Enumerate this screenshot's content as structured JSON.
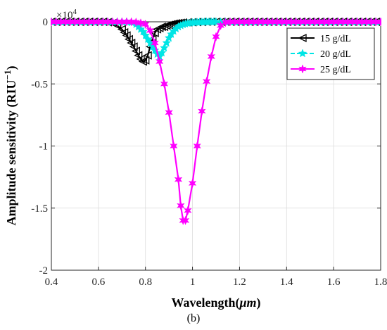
{
  "chart_data": {
    "type": "line",
    "title": "",
    "xlabel": "Wavelength(",
    "xlabel_unit": "μm",
    "xlabel_close": ")",
    "ylabel": "Amplitude sensitivity (RIU",
    "ylabel_sup": "−1",
    "ylabel_close": ")",
    "xlim": [
      0.4,
      1.8
    ],
    "ylim": [
      -2,
      0
    ],
    "y_multiplier": "×10",
    "y_multiplier_exp": "4",
    "grid": true,
    "legend_position": "top-right",
    "xticks": [
      0.4,
      0.6,
      0.8,
      1.0,
      1.2,
      1.4,
      1.6,
      1.8
    ],
    "xtick_labels": [
      "0.4",
      "0.6",
      "0.8",
      "1",
      "1.2",
      "1.4",
      "1.6",
      "1.8"
    ],
    "yticks": [
      0,
      -0.5,
      -1,
      -1.5,
      -2
    ],
    "ytick_labels": [
      "0",
      "-0.5",
      "-1",
      "-1.5",
      "-2"
    ],
    "series": [
      {
        "name": "15 g/dL",
        "color": "#000000",
        "marker": "triangle-left",
        "dash": "solid",
        "x": [
          0.4,
          0.42,
          0.44,
          0.46,
          0.48,
          0.5,
          0.52,
          0.54,
          0.56,
          0.58,
          0.6,
          0.62,
          0.64,
          0.66,
          0.68,
          0.7,
          0.71,
          0.72,
          0.73,
          0.74,
          0.75,
          0.76,
          0.77,
          0.78,
          0.79,
          0.8,
          0.81,
          0.82,
          0.83,
          0.84,
          0.85,
          0.86,
          0.87,
          0.88,
          0.89,
          0.9,
          0.91,
          0.92,
          0.93,
          0.94,
          0.95,
          0.96,
          0.98,
          1.0,
          1.02,
          1.04,
          1.06,
          1.08,
          1.1,
          1.12,
          1.14,
          1.16,
          1.18,
          1.2,
          1.22,
          1.24,
          1.26,
          1.28,
          1.3,
          1.32,
          1.34,
          1.36,
          1.38,
          1.4,
          1.42,
          1.44,
          1.46,
          1.48,
          1.5,
          1.52,
          1.54,
          1.56,
          1.58,
          1.6,
          1.62,
          1.64,
          1.66,
          1.68,
          1.7,
          1.72,
          1.74,
          1.76,
          1.78,
          1.8
        ],
        "y": [
          0,
          0,
          0,
          0,
          0,
          0,
          0,
          0,
          0,
          0,
          0,
          0,
          -0.003,
          -0.01,
          -0.03,
          -0.06,
          -0.085,
          -0.11,
          -0.14,
          -0.17,
          -0.2,
          -0.235,
          -0.27,
          -0.3,
          -0.32,
          -0.31,
          -0.27,
          -0.2,
          -0.14,
          -0.09,
          -0.06,
          -0.05,
          -0.04,
          -0.04,
          -0.03,
          -0.025,
          -0.02,
          -0.015,
          -0.012,
          -0.01,
          -0.008,
          -0.006,
          -0.004,
          -0.003,
          -0.002,
          -0.001,
          0,
          0,
          0,
          0,
          0,
          0,
          0,
          0,
          0,
          0,
          0,
          0,
          0,
          0,
          0,
          0,
          0,
          0,
          0,
          0,
          0,
          0,
          0,
          0,
          0,
          0,
          0,
          0,
          0,
          0,
          0,
          0,
          0,
          0,
          0,
          0,
          0,
          0
        ]
      },
      {
        "name": "20 g/dL",
        "color": "#00e5e5",
        "marker": "star",
        "dash": "dashed",
        "x": [
          0.4,
          0.42,
          0.44,
          0.46,
          0.48,
          0.5,
          0.52,
          0.54,
          0.56,
          0.58,
          0.6,
          0.62,
          0.64,
          0.66,
          0.68,
          0.7,
          0.72,
          0.74,
          0.76,
          0.77,
          0.78,
          0.79,
          0.8,
          0.81,
          0.82,
          0.83,
          0.84,
          0.85,
          0.86,
          0.87,
          0.88,
          0.89,
          0.9,
          0.91,
          0.92,
          0.93,
          0.94,
          0.95,
          0.96,
          0.97,
          0.98,
          0.99,
          1.0,
          1.01,
          1.02,
          1.03,
          1.04,
          1.05,
          1.06,
          1.07,
          1.08,
          1.09,
          1.1,
          1.12,
          1.14,
          1.16,
          1.18,
          1.2,
          1.22,
          1.24,
          1.26,
          1.28,
          1.3,
          1.32,
          1.34,
          1.36,
          1.38,
          1.4,
          1.42,
          1.44,
          1.46,
          1.48,
          1.5,
          1.52,
          1.54,
          1.56,
          1.58,
          1.6,
          1.62,
          1.64,
          1.66,
          1.68,
          1.7,
          1.72,
          1.74,
          1.76,
          1.78,
          1.8
        ],
        "y": [
          0,
          0,
          0,
          0,
          0,
          0,
          0,
          0,
          0,
          0,
          0,
          0,
          0,
          0,
          0,
          0,
          0,
          -0.005,
          -0.02,
          -0.04,
          -0.06,
          -0.08,
          -0.11,
          -0.14,
          -0.17,
          -0.2,
          -0.23,
          -0.26,
          -0.28,
          -0.25,
          -0.21,
          -0.17,
          -0.13,
          -0.1,
          -0.075,
          -0.055,
          -0.04,
          -0.03,
          -0.022,
          -0.016,
          -0.012,
          -0.009,
          -0.007,
          -0.005,
          -0.004,
          -0.003,
          -0.002,
          -0.0015,
          -0.001,
          -0.0008,
          -0.0005,
          -0.0003,
          0,
          0,
          0,
          0,
          0,
          0,
          0,
          0,
          0,
          0,
          0,
          0,
          0,
          0,
          0,
          0,
          0,
          0,
          0,
          0,
          0,
          0,
          0,
          0,
          0,
          0,
          0,
          0,
          0,
          0,
          0,
          0,
          0,
          0,
          0,
          0
        ]
      },
      {
        "name": "25 g/dL",
        "color": "#ff00ff",
        "marker": "star6",
        "dash": "solid",
        "x": [
          0.4,
          0.42,
          0.44,
          0.46,
          0.48,
          0.5,
          0.52,
          0.54,
          0.56,
          0.58,
          0.6,
          0.62,
          0.64,
          0.66,
          0.68,
          0.7,
          0.72,
          0.74,
          0.76,
          0.78,
          0.8,
          0.82,
          0.84,
          0.86,
          0.88,
          0.9,
          0.92,
          0.94,
          0.95,
          0.96,
          0.97,
          0.98,
          1.0,
          1.02,
          1.04,
          1.06,
          1.08,
          1.1,
          1.12,
          1.14,
          1.16,
          1.18,
          1.2,
          1.22,
          1.24,
          1.26,
          1.28,
          1.3,
          1.32,
          1.34,
          1.36,
          1.38,
          1.4,
          1.42,
          1.44,
          1.46,
          1.48,
          1.5,
          1.52,
          1.54,
          1.56,
          1.58,
          1.6,
          1.62,
          1.64,
          1.66,
          1.68,
          1.7,
          1.72,
          1.74,
          1.76,
          1.78,
          1.8
        ],
        "y": [
          0,
          0,
          0,
          0,
          0,
          0,
          0,
          0,
          0,
          0,
          0,
          0,
          0,
          0,
          0,
          0,
          0,
          0,
          -0.003,
          -0.01,
          -0.02,
          -0.07,
          -0.17,
          -0.32,
          -0.5,
          -0.73,
          -1.0,
          -1.27,
          -1.48,
          -1.6,
          -1.6,
          -1.52,
          -1.3,
          -1.0,
          -0.72,
          -0.48,
          -0.28,
          -0.12,
          -0.03,
          -0.005,
          0,
          0,
          0,
          0,
          0,
          0,
          0,
          0,
          0,
          0,
          0,
          0,
          0,
          0,
          0,
          0,
          0,
          0,
          0,
          0,
          0,
          0,
          0,
          0,
          0,
          0,
          0,
          0,
          0,
          0,
          0,
          0,
          0
        ]
      }
    ]
  },
  "caption": "(b)"
}
